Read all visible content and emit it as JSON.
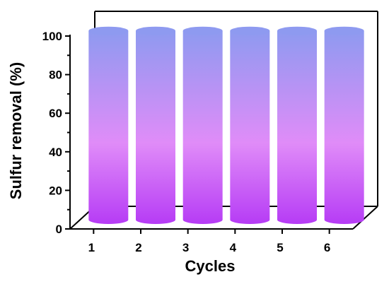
{
  "chart_data": {
    "type": "bar",
    "style": "3d-cylinder",
    "title": "",
    "xlabel": "Cycles",
    "ylabel": "Sulfur removal (%)",
    "categories": [
      "1",
      "2",
      "3",
      "4",
      "5",
      "6"
    ],
    "values": [
      99,
      99,
      99,
      99,
      99,
      99
    ],
    "ylim": [
      0,
      100
    ],
    "yticks": [
      "0",
      "20",
      "40",
      "60",
      "80",
      "100"
    ],
    "grid": false,
    "legend": "none",
    "colors": {
      "top": "#8E9AF0",
      "middle": "#E08CF8",
      "bottom": "#B63CF5",
      "axis": "#000000"
    }
  }
}
